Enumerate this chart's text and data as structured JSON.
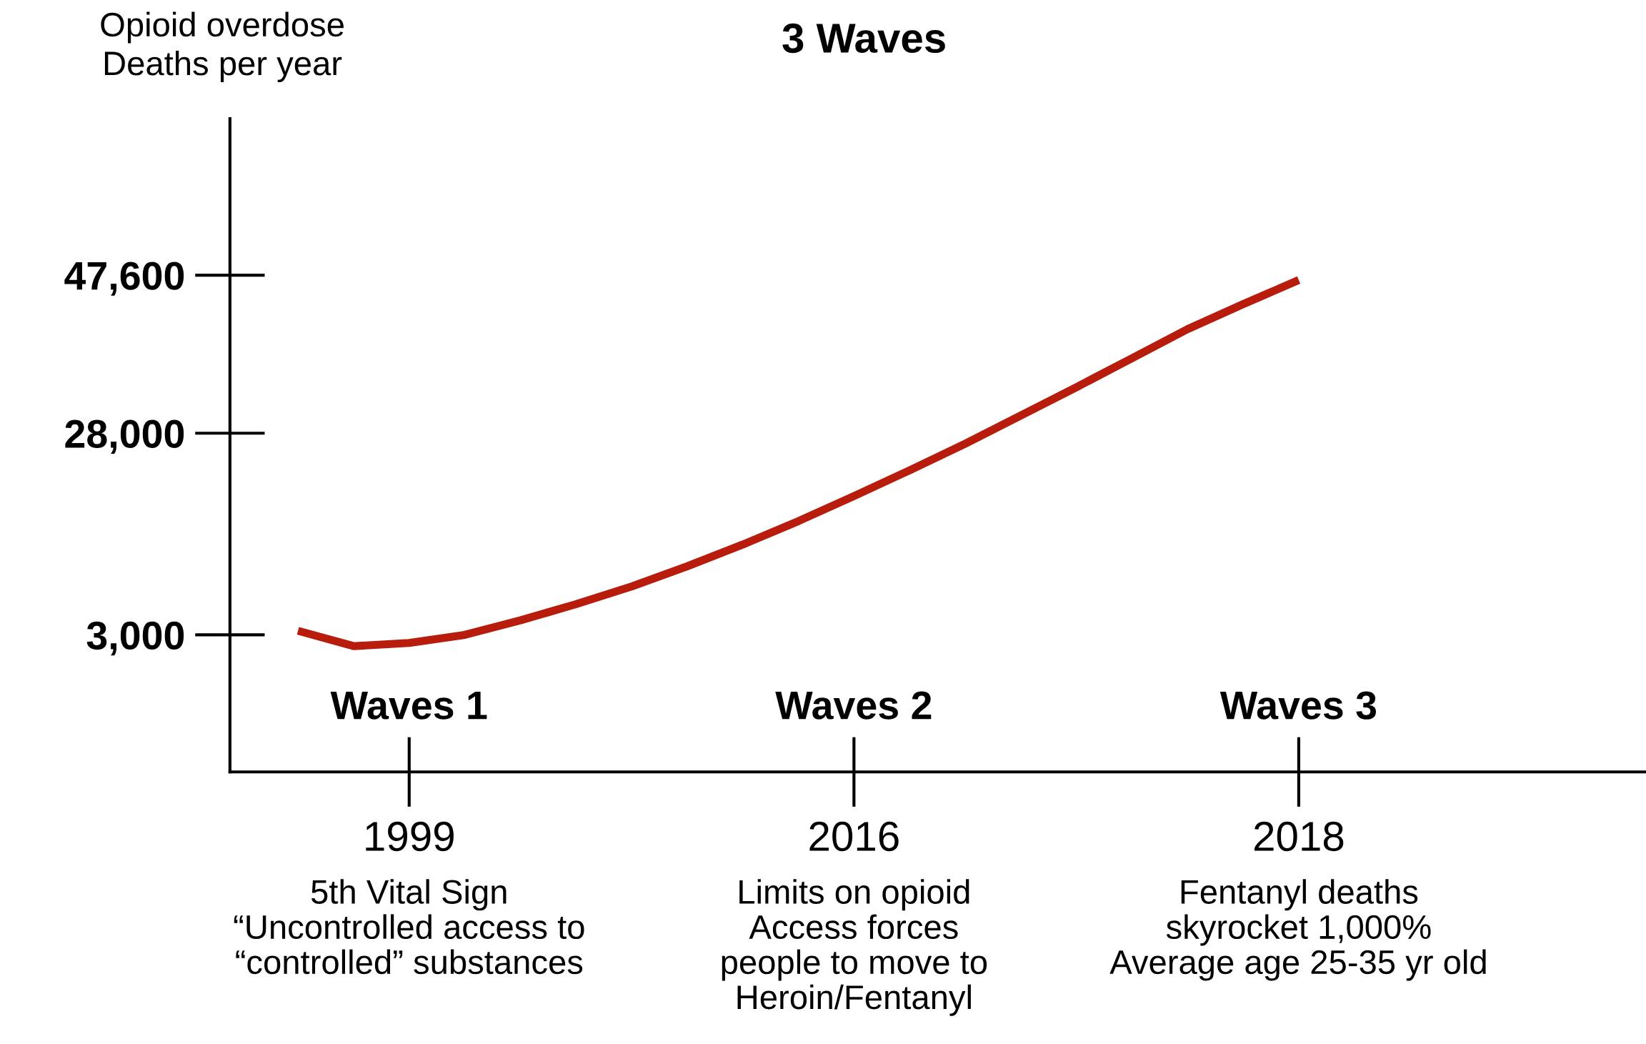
{
  "chart_data": {
    "type": "line",
    "title": "3 Waves",
    "ylabel": "Opioid overdose\nDeaths per year",
    "categories": [
      null,
      null,
      "1999",
      null,
      null,
      null,
      null,
      null,
      null,
      null,
      "2016",
      null,
      null,
      null,
      null,
      null,
      null,
      null,
      "2018"
    ],
    "series": [
      {
        "color": "#b71c0c",
        "values": [
          3500,
          1600,
          2000,
          3000,
          4800,
          6800,
          9000,
          11500,
          14200,
          17100,
          20200,
          23400,
          26700,
          30200,
          33700,
          37300,
          40900,
          44000,
          47000
        ]
      }
    ],
    "ylim": [
      -14000,
      67000
    ],
    "yticks": [
      {
        "value": 3000,
        "label": "3,000"
      },
      {
        "value": 28000,
        "label": "28,000"
      },
      {
        "value": 47600,
        "label": "47,600"
      }
    ],
    "annotations": [
      "Waves 1",
      "Waves 2",
      "Waves 3",
      "5th Vital Sign\n“Uncontrolled access to\n“controlled” substances",
      "Limits on opioid\nAccess forces\npeople to move to\nHeroin/Fentanyl",
      "Fentanyl deaths\nskyrocket 1,000%\nAverage age 25-35 yr old"
    ],
    "grid": false,
    "legend": false,
    "marker": "none",
    "line_style": "solid"
  }
}
